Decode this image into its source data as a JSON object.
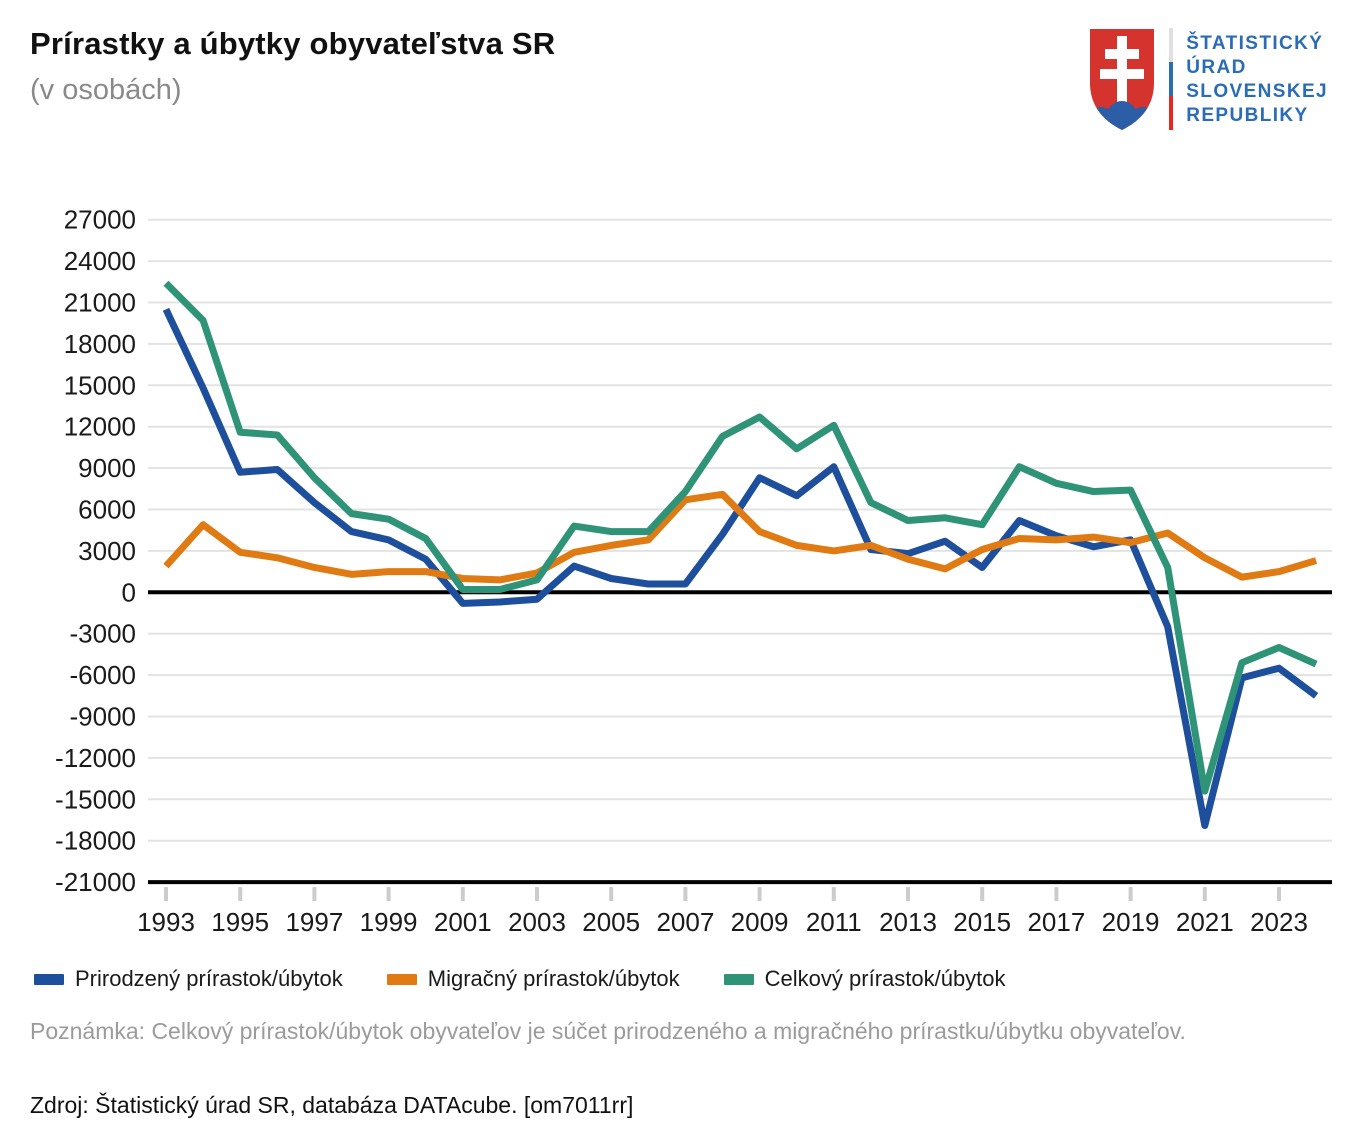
{
  "header": {
    "title": "Prírastky a úbytky obyvateľstva SR",
    "subtitle": "(v osobách)",
    "logo": {
      "line1": "ŠTATISTICKÝ",
      "line2": "ÚRAD",
      "line3": "SLOVENSKEJ",
      "line4": "REPUBLIKY",
      "text_color": "#2a6cb5",
      "arms_red": "#d5332e",
      "arms_blue": "#2b5ea7"
    }
  },
  "chart_data": {
    "type": "line",
    "title": "Prírastky a úbytky obyvateľstva SR",
    "subtitle": "(v osobách)",
    "xlabel": "",
    "ylabel": "",
    "x": [
      1993,
      1994,
      1995,
      1996,
      1997,
      1998,
      1999,
      2000,
      2001,
      2002,
      2003,
      2004,
      2005,
      2006,
      2007,
      2008,
      2009,
      2010,
      2011,
      2012,
      2013,
      2014,
      2015,
      2016,
      2017,
      2018,
      2019,
      2020,
      2021,
      2022,
      2023,
      2024
    ],
    "series": [
      {
        "name": "Prirodzený prírastok/úbytok",
        "color": "#1d4f9c",
        "values": [
          20500,
          14800,
          8700,
          8900,
          6500,
          4400,
          3800,
          2400,
          -800,
          -700,
          -500,
          1900,
          1000,
          600,
          600,
          4200,
          8300,
          7000,
          9100,
          3100,
          2800,
          3700,
          1800,
          5200,
          4100,
          3300,
          3800,
          -2500,
          -16900,
          -6200,
          -5500,
          -7500
        ]
      },
      {
        "name": "Migračný prírastok/úbytok",
        "color": "#e07b13",
        "values": [
          1900,
          4900,
          2900,
          2500,
          1800,
          1300,
          1500,
          1500,
          1000,
          900,
          1400,
          2900,
          3400,
          3800,
          6700,
          7100,
          4400,
          3400,
          3000,
          3400,
          2400,
          1700,
          3100,
          3900,
          3800,
          4000,
          3600,
          4300,
          2500,
          1100,
          1500,
          2300
        ]
      },
      {
        "name": "Celkový prírastok/úbytok",
        "color": "#2e9377",
        "values": [
          22400,
          19700,
          11600,
          11400,
          8300,
          5700,
          5300,
          3900,
          200,
          200,
          900,
          4800,
          4400,
          4400,
          7300,
          11300,
          12700,
          10400,
          12100,
          6500,
          5200,
          5400,
          4900,
          9100,
          7900,
          7300,
          7400,
          1800,
          -14400,
          -5100,
          -4000,
          -5200
        ]
      }
    ],
    "ylim": [
      -21000,
      27000
    ],
    "y_tick_step": 3000,
    "y_tick_labels": [
      "27000",
      "24000",
      "21000",
      "18000",
      "15000",
      "12000",
      "9000",
      "6000",
      "3000",
      "0",
      "-3000",
      "-6000",
      "-9000",
      "-12000",
      "-15000",
      "-18000",
      "-21000"
    ],
    "x_tick_labels": [
      "1993",
      "1995",
      "1997",
      "1999",
      "2001",
      "2003",
      "2005",
      "2007",
      "2009",
      "2011",
      "2013",
      "2015",
      "2017",
      "2019",
      "2021",
      "2023"
    ],
    "grid": true,
    "zero_line": true,
    "legend_position": "bottom",
    "grid_color": "#e3e3e3",
    "axis_color": "#000000",
    "tick_mark_color": "#cccccc"
  },
  "footer": {
    "note": "Poznámka: Celkový prírastok/úbytok obyvateľov je súčet prirodzeného a migračného prírastku/úbytku obyvateľov.",
    "source": "Zdroj: Štatistický úrad SR, databáza DATAcube. [om7011rr]"
  }
}
